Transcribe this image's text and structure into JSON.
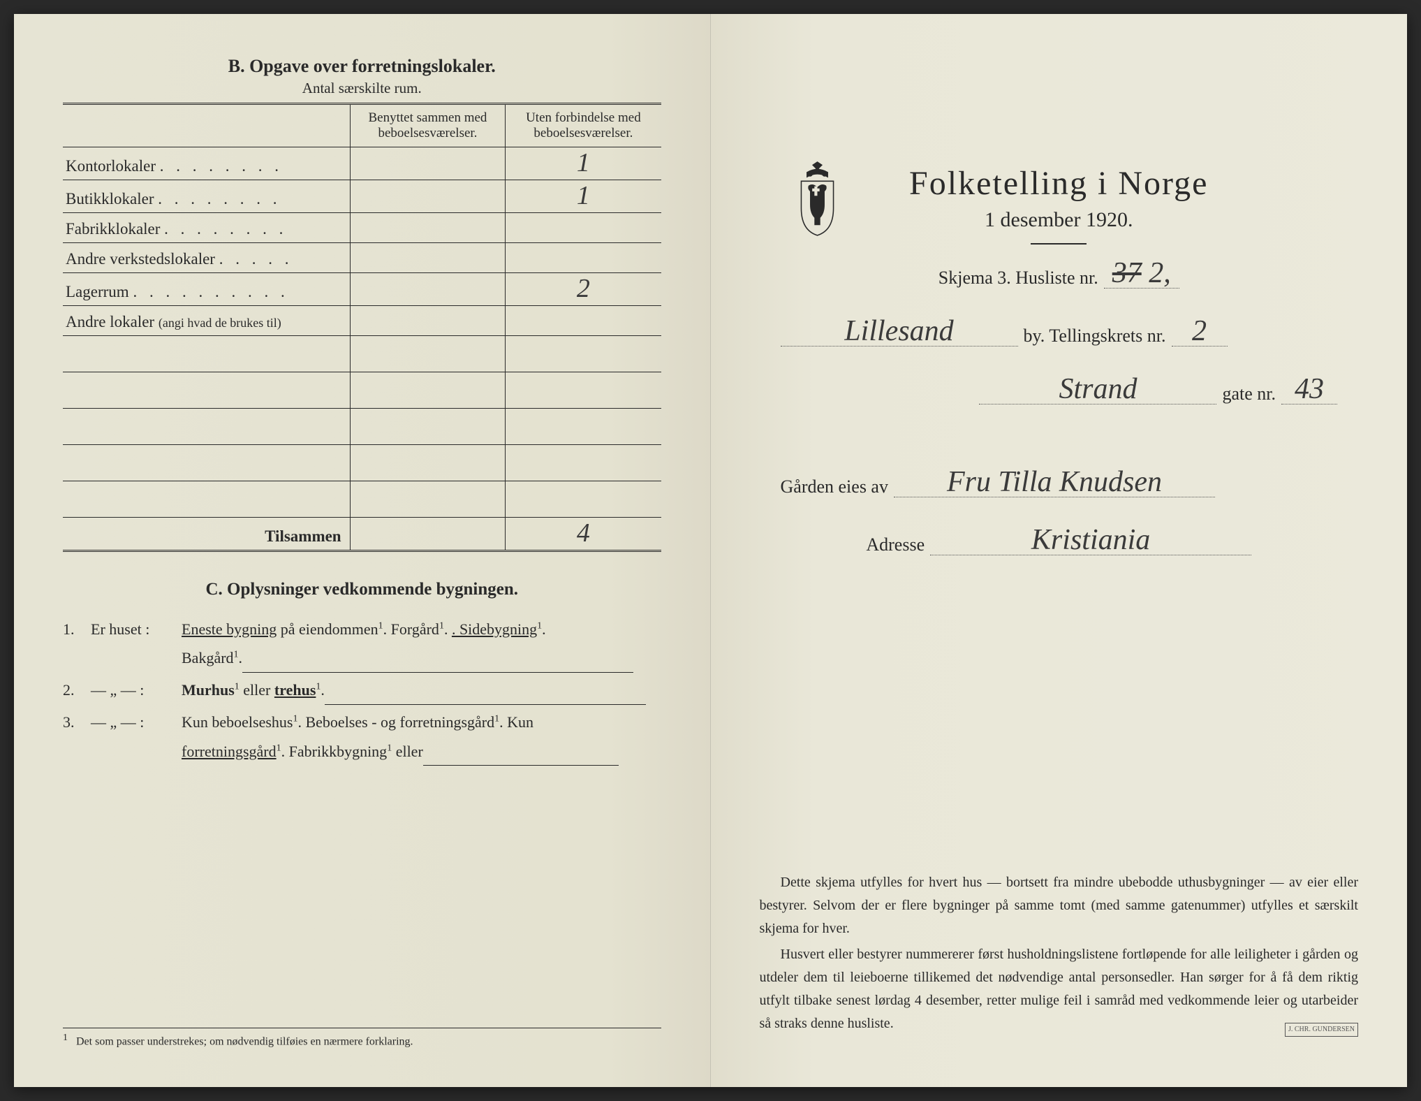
{
  "left": {
    "sectionB": {
      "title": "B.  Opgave over forretningslokaler.",
      "subtitle": "Antal særskilte rum.",
      "col1": "Benyttet sammen med beboelsesværelser.",
      "col2": "Uten forbindelse med beboelsesværelser.",
      "rows": [
        {
          "label": "Kontorlokaler",
          "dots": ". . . . . . . .",
          "v1": "",
          "v2": "1"
        },
        {
          "label": "Butikklokaler",
          "dots": ". . . . . . . .",
          "v1": "",
          "v2": "1"
        },
        {
          "label": "Fabrikklokaler",
          "dots": ". . . . . . . .",
          "v1": "",
          "v2": ""
        },
        {
          "label": "Andre verkstedslokaler",
          "dots": ". . . . .",
          "v1": "",
          "v2": ""
        },
        {
          "label": "Lagerrum",
          "dots": ". . . . . . . . . .",
          "v1": "",
          "v2": "2"
        },
        {
          "label": "Andre lokaler",
          "small": "(angi hvad de brukes til)",
          "dots": "",
          "v1": "",
          "v2": ""
        }
      ],
      "blankRows": 5,
      "totalLabel": "Tilsammen",
      "totalV1": "",
      "totalV2": "4"
    },
    "sectionC": {
      "title": "C.  Oplysninger vedkommende bygningen.",
      "item1_num": "1.",
      "item1_lbl": "Er huset :",
      "item1_text_a": "Eneste bygning",
      "item1_text_b": " på eiendommen",
      "item1_text_c": ".  Forgård",
      "item1_text_d": ".  Sidebygning",
      "item1_text_e": "Bakgård",
      "item2_num": "2.",
      "item2_lbl": "— „ — :",
      "item2_a": "Murhus",
      "item2_b": " eller ",
      "item2_c": "trehus",
      "item3_num": "3.",
      "item3_lbl": "— „ — :",
      "item3_a": "Kun beboelseshus",
      "item3_b": ".  Beboelses - og forretningsgård",
      "item3_c": ".  Kun",
      "item3_d": "forretningsgård",
      "item3_e": ".  Fabrikkbygning",
      "item3_f": " eller"
    },
    "footnote_marker": "1",
    "footnote": "Det som passer understrekes; om nødvendig tilføies en nærmere forklaring."
  },
  "right": {
    "title": "Folketelling  i  Norge",
    "date": "1 desember 1920.",
    "skjema": "Skjema 3.  Husliste nr.",
    "husliste_struck": "37",
    "husliste_nr": "2,",
    "by_value": "Lillesand",
    "by_label": "by.  Tellingskrets nr.",
    "krets_nr": "2",
    "gate_value": "Strand",
    "gate_label": "gate nr.",
    "gate_nr": "43",
    "eies_label": "Gården eies av",
    "eies_value": "Fru Tilla Knudsen",
    "adresse_label": "Adresse",
    "adresse_value": "Kristiania",
    "instr_p1": "Dette skjema utfylles for hvert hus — bortsett fra mindre ubebodde uthusbygninger — av eier eller bestyrer.  Selvom der er flere bygninger på samme tomt (med samme gatenummer) utfylles et særskilt skjema for hver.",
    "instr_p2": "Husvert eller bestyrer nummererer først husholdningslistene fortløpende for alle leiligheter i gården og utdeler dem til leieboerne tillikemed det nødvendige antal personsedler. Han sørger for å få dem riktig utfylt tilbake senest lørdag 4 desember, retter mulige feil i samråd med vedkommende leier og utarbeider så straks denne husliste.",
    "printer": "J. CHR. GUNDERSEN"
  },
  "colors": {
    "paper": "#e8e6d8",
    "ink": "#2a2a2a",
    "pen": "#3a3a3a"
  }
}
